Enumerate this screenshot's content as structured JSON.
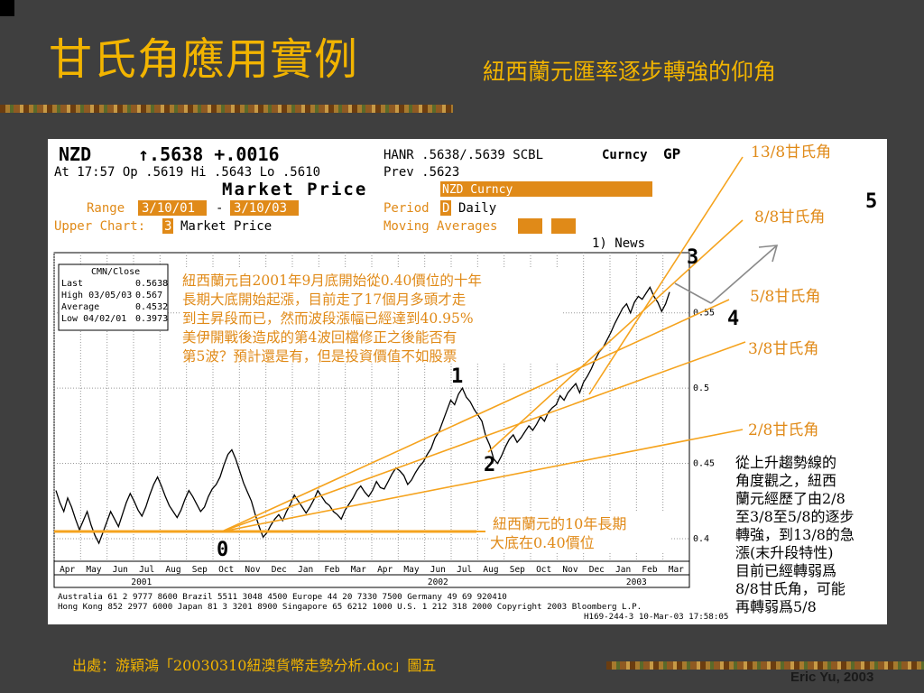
{
  "slide": {
    "title": "甘氏角應用實例",
    "subtitle": "紐西蘭元匯率逐步轉強的仰角",
    "source": "出處：游穎鴻「20030310紐澳貨幣走勢分析.doc」圖五",
    "author": "Eric Yu, 2003"
  },
  "terminal": {
    "row1": {
      "ticker": "NZD",
      "price": "↑.5638 +.0016",
      "quote": "HANR .5638/.5639 SCBL",
      "curncy": "Curncy",
      "gp": "GP"
    },
    "row2": {
      "left": "At 17:57 Op .5619  Hi .5643  Lo .5610",
      "prev": "Prev .5623"
    },
    "row3": {
      "title": "Market Price",
      "security": "NZD Curncy"
    },
    "row4": {
      "range_label": "Range",
      "range_from": "3/10/01",
      "dash": "-",
      "range_to": "3/10/03",
      "period_label": "Period",
      "period_code": "D",
      "period_value": "Daily"
    },
    "row5": {
      "upper_label": "Upper Chart:",
      "upper_code": "3",
      "upper_value": "Market Price",
      "ma_label": "Moving Averages"
    },
    "news": "1) News",
    "footer1": "Australia 61 2 9777 8600          Brazil 5511 3048 4500          Europe 44 20 7330 7500          Germany 49 69 920410",
    "footer2": "Hong Kong 852 2977 6000 Japan 81 3 3201 8900 Singapore 65 6212 1000 U.S. 1 212 318 2000 Copyright 2003 Bloomberg L.P.",
    "footer3": "H169-244-3 10-Mar-03 17:58:05"
  },
  "legend_box": {
    "header": "CMN/Close",
    "rows": [
      {
        "label": "Last",
        "value": "0.5638"
      },
      {
        "label": "High 03/05/03",
        "value": "0.567"
      },
      {
        "label": "Average",
        "value": "0.4532"
      },
      {
        "label": "Low 04/02/01",
        "value": "0.3973"
      }
    ]
  },
  "annotations": {
    "main_note": [
      "紐西蘭元自2001年9月底開始從0.40價位的十年",
      "長期大底開始起漲，目前走了17個月多頭才走",
      "到主昇段而已，然而波段漲幅已經達到40.95%",
      "美伊開戰後造成的第4波回檔修正之後能否有",
      "第5波？預計還是有，但是投資價值不如股票"
    ],
    "bottom_note": [
      "紐西蘭元的10年長期",
      "大底在0.40價位"
    ],
    "right_note": [
      "從上升趨勢線的",
      "角度觀之，紐西",
      "蘭元經歷了由2/8",
      "至3/8至5/8的逐步",
      "轉強，到13/8的急",
      "漲(末升段特性)",
      "目前已經轉弱爲",
      "8/8甘氏角，可能",
      "再轉弱爲5/8"
    ],
    "wave_labels": [
      "0",
      "1",
      "2",
      "3",
      "4",
      "5"
    ]
  },
  "colors": {
    "accent": "#f2b400",
    "gann": "#f5a31e",
    "terminal_orange": "#e08a18",
    "arrow": "#8a8a8a",
    "background": "#3f3f3f"
  },
  "chart_data": {
    "type": "line",
    "series": [
      {
        "values": [
          0.432,
          0.424,
          0.418,
          0.427,
          0.421,
          0.413,
          0.406,
          0.412,
          0.418,
          0.409,
          0.402,
          0.397,
          0.404,
          0.411,
          0.418,
          0.413,
          0.408,
          0.416,
          0.424,
          0.43,
          0.425,
          0.419,
          0.415,
          0.421,
          0.429,
          0.436,
          0.441,
          0.435,
          0.428,
          0.422,
          0.418,
          0.414,
          0.419,
          0.426,
          0.432,
          0.428,
          0.423,
          0.418,
          0.421,
          0.428,
          0.433,
          0.436,
          0.441,
          0.449,
          0.456,
          0.459,
          0.453,
          0.445,
          0.437,
          0.431,
          0.425,
          0.416,
          0.408,
          0.401,
          0.404,
          0.409,
          0.413,
          0.416,
          0.412,
          0.418,
          0.423,
          0.429,
          0.425,
          0.421,
          0.417,
          0.421,
          0.426,
          0.432,
          0.428,
          0.424,
          0.422,
          0.418,
          0.416,
          0.413,
          0.419,
          0.423,
          0.427,
          0.432,
          0.435,
          0.431,
          0.428,
          0.432,
          0.438,
          0.434,
          0.433,
          0.438,
          0.443,
          0.447,
          0.445,
          0.442,
          0.436,
          0.439,
          0.444,
          0.448,
          0.451,
          0.456,
          0.46,
          0.467,
          0.471,
          0.478,
          0.485,
          0.492,
          0.489,
          0.496,
          0.5,
          0.494,
          0.491,
          0.486,
          0.482,
          0.478,
          0.468,
          0.462,
          0.453,
          0.45,
          0.455,
          0.461,
          0.466,
          0.469,
          0.464,
          0.467,
          0.471,
          0.475,
          0.472,
          0.476,
          0.481,
          0.478,
          0.484,
          0.487,
          0.489,
          0.495,
          0.492,
          0.497,
          0.5,
          0.503,
          0.497,
          0.504,
          0.508,
          0.513,
          0.519,
          0.524,
          0.527,
          0.532,
          0.537,
          0.543,
          0.548,
          0.553,
          0.556,
          0.55,
          0.557,
          0.561,
          0.559,
          0.563,
          0.567,
          0.561,
          0.557,
          0.551,
          0.556,
          0.5638
        ]
      }
    ],
    "x_ticks": [
      "Apr",
      "May",
      "Jun",
      "Jul",
      "Aug",
      "Sep",
      "Oct",
      "Nov",
      "Dec",
      "Jan",
      "Feb",
      "Mar",
      "Apr",
      "May",
      "Jun",
      "Jul",
      "Aug",
      "Sep",
      "Oct",
      "Nov",
      "Dec",
      "Jan",
      "Feb",
      "Mar"
    ],
    "year_labels": [
      "2001",
      "2002",
      "2003"
    ],
    "y_ticks": [
      "0.4",
      "0.45",
      "0.5",
      "0.55"
    ],
    "ylim": [
      0.385,
      0.59
    ],
    "gann_fans": [
      {
        "label": "13/8甘氏角"
      },
      {
        "label": "8/8甘氏角"
      },
      {
        "label": "5/8甘氏角"
      },
      {
        "label": "3/8甘氏角"
      },
      {
        "label": "2/8甘氏角"
      }
    ]
  }
}
